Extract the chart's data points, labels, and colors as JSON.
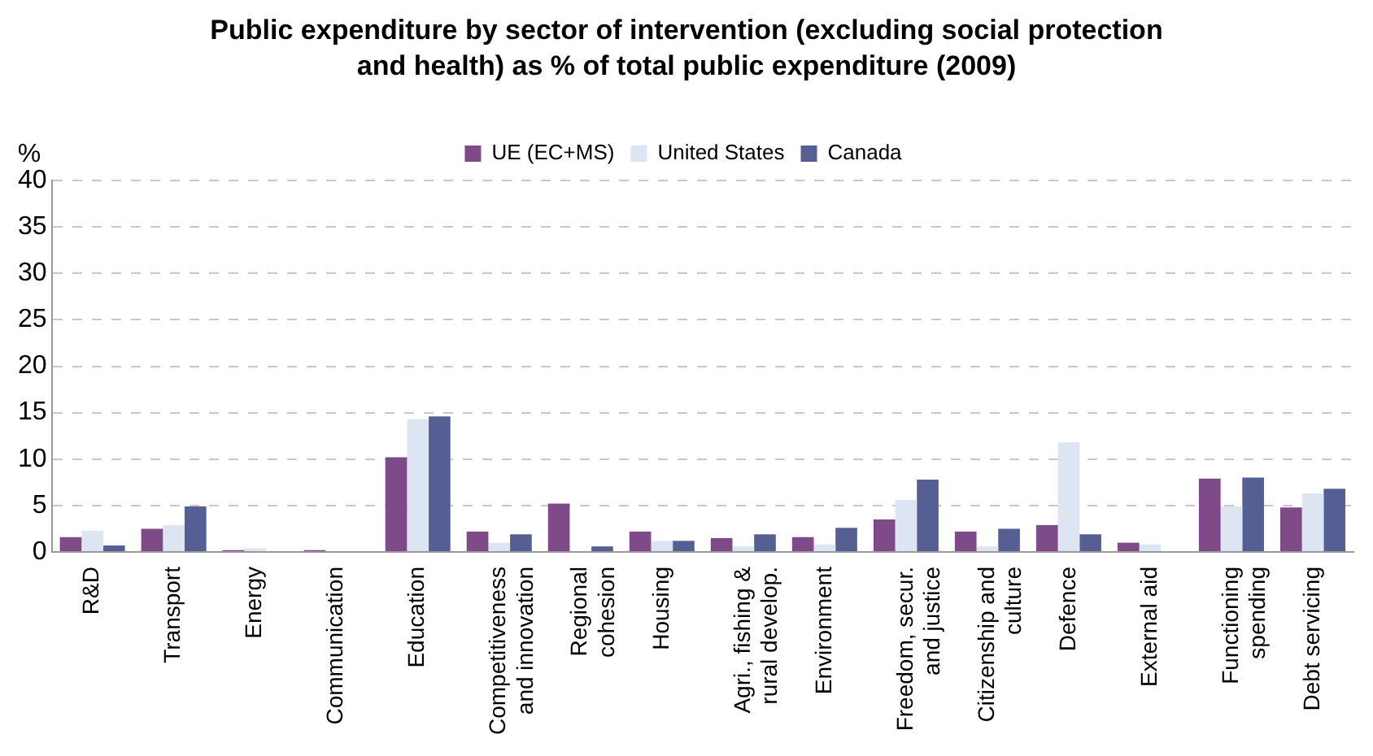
{
  "chart_data": {
    "type": "bar",
    "title": "Public expenditure by sector of intervention (excluding social protection and health) as  % of total public expenditure (2009)",
    "ylabel": "%",
    "categories": [
      "R&D",
      "Transport",
      "Energy",
      "Communication",
      "Education",
      "Competitiveness and innovation",
      "Regional cohesion",
      "Housing",
      "Agri., fishing & rural develop.",
      "Environment",
      "Freedom, secur. and justice",
      "Citizenship and culture",
      "Defence",
      "External aid",
      "Functioning spending",
      "Debt servicing"
    ],
    "series": [
      {
        "name": "UE (EC+MS)",
        "color": "#7f4a88",
        "values": [
          1.6,
          2.5,
          0.2,
          0.2,
          10.2,
          2.2,
          5.2,
          2.2,
          1.5,
          1.6,
          3.5,
          2.2,
          2.9,
          1.0,
          7.9,
          4.8
        ]
      },
      {
        "name": "United States",
        "color": "#dde5f3",
        "values": [
          2.3,
          2.9,
          0.4,
          null,
          14.3,
          1.0,
          null,
          1.2,
          0.6,
          0.8,
          5.6,
          0.6,
          11.8,
          0.8,
          4.9,
          6.3
        ]
      },
      {
        "name": "Canada",
        "color": "#565f94",
        "values": [
          0.7,
          4.9,
          null,
          null,
          14.6,
          1.9,
          0.6,
          1.2,
          1.9,
          2.6,
          7.8,
          2.5,
          1.9,
          null,
          8.0,
          6.8
        ]
      }
    ],
    "ylim": [
      0,
      40
    ],
    "yticks": [
      0,
      5,
      10,
      15,
      20,
      25,
      30,
      35,
      40
    ],
    "grid": "y",
    "legend": "top"
  }
}
